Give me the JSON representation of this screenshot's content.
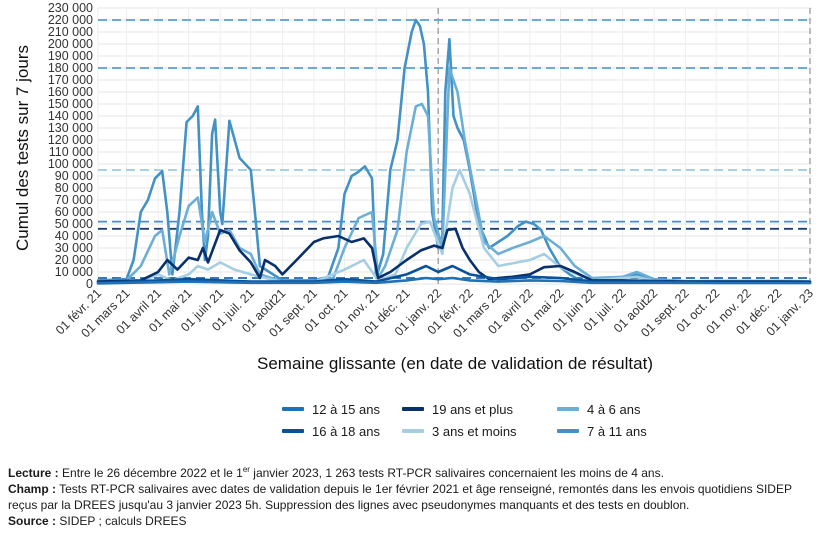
{
  "chart_data": {
    "type": "line",
    "xlabel": "Semaine glissante (en date de validation de résultat)",
    "ylabel": "Cumul des tests sur 7 jours",
    "ylim": [
      0,
      230000
    ],
    "yticks": [
      0,
      10000,
      20000,
      30000,
      40000,
      50000,
      60000,
      70000,
      80000,
      90000,
      100000,
      110000,
      120000,
      130000,
      140000,
      150000,
      160000,
      170000,
      180000,
      190000,
      200000,
      210000,
      220000,
      230000
    ],
    "ytick_labels": [
      "0",
      "10 000",
      "20 000",
      "30 000",
      "40 000",
      "50 000",
      "60 000",
      "70 000",
      "80 000",
      "90 000",
      "100 000",
      "110 000",
      "120 000",
      "130 000",
      "140 000",
      "150 000",
      "160 000",
      "170 000",
      "180 000",
      "190 000",
      "200 000",
      "210 000",
      "220 000",
      "230 000"
    ],
    "x_range": [
      "2021-02-01",
      "2023-01-03"
    ],
    "xticks": [
      "2021-02-01",
      "2021-03-01",
      "2021-04-01",
      "2021-05-01",
      "2021-06-01",
      "2021-07-01",
      "2021-08-01",
      "2021-09-01",
      "2021-10-01",
      "2021-11-01",
      "2021-12-01",
      "2022-01-01",
      "2022-02-01",
      "2022-03-01",
      "2022-04-01",
      "2022-05-01",
      "2022-06-01",
      "2022-07-01",
      "2022-08-01",
      "2022-09-01",
      "2022-10-01",
      "2022-11-01",
      "2022-12-01",
      "2023-01-01"
    ],
    "xtick_labels": [
      "01 févr. 21",
      "01 mars 21",
      "01 avril 21",
      "01 mai 21",
      "01 juin 21",
      "01 juil. 21",
      "01 août21",
      "01 sept. 21",
      "01 oct. 21",
      "01 nov. 21",
      "01 déc. 21",
      "01 janv. 22",
      "01 févr. 22",
      "01 mars 22",
      "01 avril 22",
      "01 mai 22",
      "01 juin 22",
      "01 juil. 22",
      "01 août22",
      "01 sept. 22",
      "01 oct. 22",
      "01 nov. 22",
      "01 déc. 22",
      "01 janv. 23"
    ],
    "vlines": [
      "2022-01-01",
      "2023-01-01"
    ],
    "hlines": [
      {
        "y": 220000,
        "color": "#5a9fd0"
      },
      {
        "y": 180000,
        "color": "#5a9fd0"
      },
      {
        "y": 95000,
        "color": "#9ecae1"
      },
      {
        "y": 52000,
        "color": "#4a8cc7"
      },
      {
        "y": 46000,
        "color": "#1f3f73"
      },
      {
        "y": 5000,
        "color": "#2166ac"
      }
    ],
    "grid": true,
    "legend_position": "bottom",
    "series": [
      {
        "name": "7 à 11 ans",
        "color": "#4292c6",
        "x": [
          "2021-02-01",
          "2021-03-01",
          "2021-03-08",
          "2021-03-15",
          "2021-03-22",
          "2021-03-29",
          "2021-04-05",
          "2021-04-10",
          "2021-04-15",
          "2021-04-22",
          "2021-04-29",
          "2021-05-05",
          "2021-05-10",
          "2021-05-14",
          "2021-05-17",
          "2021-05-20",
          "2021-05-24",
          "2021-05-27",
          "2021-06-01",
          "2021-06-03",
          "2021-06-10",
          "2021-06-20",
          "2021-07-01",
          "2021-07-05",
          "2021-07-10",
          "2021-08-01",
          "2021-09-01",
          "2021-09-15",
          "2021-09-25",
          "2021-10-01",
          "2021-10-08",
          "2021-10-14",
          "2021-10-21",
          "2021-10-28",
          "2021-11-01",
          "2021-11-08",
          "2021-11-15",
          "2021-11-22",
          "2021-11-29",
          "2021-12-06",
          "2021-12-10",
          "2021-12-14",
          "2021-12-18",
          "2021-12-22",
          "2021-12-26",
          "2022-01-01",
          "2022-01-05",
          "2022-01-08",
          "2022-01-12",
          "2022-01-16",
          "2022-01-20",
          "2022-01-26",
          "2022-02-01",
          "2022-02-10",
          "2022-02-20",
          "2022-03-01",
          "2022-03-10",
          "2022-03-20",
          "2022-03-28",
          "2022-04-05",
          "2022-04-12",
          "2022-04-20",
          "2022-05-01",
          "2022-05-10",
          "2022-05-20",
          "2022-06-01",
          "2022-06-15",
          "2022-07-01",
          "2022-07-15",
          "2022-08-01",
          "2022-09-01",
          "2022-10-01",
          "2022-11-01",
          "2022-12-01",
          "2022-12-20",
          "2023-01-01"
        ],
        "y": [
          3000,
          4000,
          20000,
          60000,
          70000,
          88000,
          94000,
          60000,
          8000,
          60000,
          135000,
          140000,
          148000,
          60000,
          20000,
          40000,
          125000,
          137000,
          60000,
          50000,
          136000,
          105000,
          95000,
          60000,
          15000,
          3000,
          3000,
          6000,
          30000,
          75000,
          90000,
          93000,
          98000,
          88000,
          5000,
          25000,
          95000,
          120000,
          180000,
          210000,
          220000,
          215000,
          200000,
          160000,
          60000,
          30000,
          40000,
          160000,
          204000,
          140000,
          130000,
          120000,
          95000,
          50000,
          30000,
          35000,
          40000,
          48000,
          52000,
          50000,
          45000,
          30000,
          14000,
          8000,
          3000,
          3000,
          3000,
          5000,
          8000,
          3000,
          2000,
          2500,
          2500,
          2500,
          2500,
          2000
        ]
      },
      {
        "name": "4 à 6 ans",
        "color": "#6baed6",
        "x": [
          "2021-02-01",
          "2021-03-01",
          "2021-03-15",
          "2021-03-29",
          "2021-04-05",
          "2021-04-12",
          "2021-04-22",
          "2021-05-01",
          "2021-05-10",
          "2021-05-17",
          "2021-05-24",
          "2021-06-01",
          "2021-06-10",
          "2021-06-20",
          "2021-07-01",
          "2021-07-10",
          "2021-08-01",
          "2021-09-01",
          "2021-09-20",
          "2021-10-01",
          "2021-10-15",
          "2021-10-28",
          "2021-11-03",
          "2021-11-10",
          "2021-11-22",
          "2021-12-01",
          "2021-12-10",
          "2021-12-16",
          "2021-12-22",
          "2021-12-28",
          "2022-01-05",
          "2022-01-12",
          "2022-01-20",
          "2022-01-27",
          "2022-02-05",
          "2022-02-15",
          "2022-03-01",
          "2022-03-15",
          "2022-04-01",
          "2022-04-15",
          "2022-05-01",
          "2022-05-15",
          "2022-06-01",
          "2022-07-01",
          "2022-07-15",
          "2022-08-01",
          "2022-09-01",
          "2022-10-01",
          "2022-11-01",
          "2022-12-01",
          "2023-01-01"
        ],
        "y": [
          2000,
          3000,
          15000,
          40000,
          45000,
          8000,
          40000,
          65000,
          72000,
          35000,
          60000,
          42000,
          45000,
          30000,
          25000,
          8000,
          2000,
          2000,
          5000,
          30000,
          55000,
          60000,
          5000,
          15000,
          45000,
          110000,
          148000,
          150000,
          140000,
          55000,
          30000,
          180000,
          160000,
          120000,
          80000,
          35000,
          25000,
          30000,
          35000,
          40000,
          30000,
          15000,
          5000,
          6000,
          10000,
          4000,
          2500,
          2500,
          2500,
          2500,
          2000
        ]
      },
      {
        "name": "3 ans et moins",
        "color": "#a6cee3",
        "x": [
          "2021-02-01",
          "2021-03-15",
          "2021-04-01",
          "2021-04-15",
          "2021-05-01",
          "2021-05-10",
          "2021-05-20",
          "2021-06-01",
          "2021-06-15",
          "2021-07-01",
          "2021-08-01",
          "2021-09-01",
          "2021-10-01",
          "2021-10-20",
          "2021-11-03",
          "2021-11-20",
          "2021-12-01",
          "2021-12-15",
          "2021-12-24",
          "2022-01-05",
          "2022-01-15",
          "2022-01-22",
          "2022-02-01",
          "2022-02-15",
          "2022-03-01",
          "2022-04-01",
          "2022-04-15",
          "2022-05-01",
          "2022-06-01",
          "2022-07-01",
          "2022-07-15",
          "2022-08-01",
          "2022-09-01",
          "2022-10-01",
          "2022-11-01",
          "2022-12-01",
          "2023-01-01"
        ],
        "y": [
          1000,
          2000,
          8000,
          3000,
          8000,
          15000,
          12000,
          18000,
          12000,
          8000,
          1500,
          1500,
          12000,
          20000,
          3000,
          8000,
          30000,
          50000,
          52000,
          25000,
          80000,
          95000,
          75000,
          30000,
          15000,
          20000,
          25000,
          14000,
          3000,
          5000,
          6000,
          2500,
          1500,
          1500,
          1500,
          1500,
          1263
        ]
      },
      {
        "name": "19 ans et plus",
        "color": "#08306b",
        "x": [
          "2021-02-01",
          "2021-03-15",
          "2021-04-01",
          "2021-04-10",
          "2021-04-20",
          "2021-05-01",
          "2021-05-10",
          "2021-05-15",
          "2021-05-20",
          "2021-06-01",
          "2021-06-10",
          "2021-06-20",
          "2021-07-01",
          "2021-07-10",
          "2021-07-15",
          "2021-07-25",
          "2021-08-01",
          "2021-08-15",
          "2021-09-01",
          "2021-09-10",
          "2021-09-25",
          "2021-10-08",
          "2021-10-20",
          "2021-10-28",
          "2021-11-03",
          "2021-11-15",
          "2021-12-01",
          "2021-12-15",
          "2021-12-28",
          "2022-01-05",
          "2022-01-10",
          "2022-01-18",
          "2022-01-25",
          "2022-02-01",
          "2022-02-10",
          "2022-02-20",
          "2022-03-01",
          "2022-03-15",
          "2022-04-01",
          "2022-04-15",
          "2022-05-01",
          "2022-05-15",
          "2022-06-01",
          "2022-07-01",
          "2022-08-01",
          "2022-09-01",
          "2022-10-01",
          "2022-11-01",
          "2022-12-01",
          "2023-01-01"
        ],
        "y": [
          2000,
          3000,
          10000,
          20000,
          12000,
          22000,
          20000,
          30000,
          18000,
          45000,
          42000,
          28000,
          18000,
          5000,
          20000,
          15000,
          8000,
          20000,
          35000,
          38000,
          40000,
          35000,
          38000,
          30000,
          5000,
          10000,
          20000,
          28000,
          32000,
          30000,
          45000,
          46000,
          30000,
          20000,
          10000,
          4000,
          5000,
          6000,
          8000,
          14000,
          15000,
          10000,
          3000,
          3000,
          2500,
          2000,
          2000,
          2000,
          2000,
          1800
        ]
      },
      {
        "name": "16 à 18 ans",
        "color": "#08519c",
        "x": [
          "2021-02-01",
          "2021-04-01",
          "2021-05-01",
          "2021-06-01",
          "2021-07-01",
          "2021-09-01",
          "2021-10-01",
          "2021-11-01",
          "2021-12-01",
          "2021-12-20",
          "2022-01-01",
          "2022-01-15",
          "2022-02-01",
          "2022-03-01",
          "2022-04-01",
          "2022-05-01",
          "2022-06-01",
          "2022-08-01",
          "2022-10-01",
          "2022-12-01",
          "2023-01-01"
        ],
        "y": [
          1000,
          3000,
          4000,
          3000,
          2000,
          2000,
          4000,
          2000,
          8000,
          15000,
          10000,
          15000,
          8000,
          4000,
          6000,
          5000,
          2000,
          2000,
          1000,
          1000,
          1000
        ]
      },
      {
        "name": "12 à 15 ans",
        "color": "#2171b5",
        "x": [
          "2021-02-01",
          "2021-04-01",
          "2021-05-01",
          "2021-06-01",
          "2021-07-01",
          "2021-09-01",
          "2021-10-01",
          "2021-11-01",
          "2021-12-01",
          "2021-12-20",
          "2022-01-01",
          "2022-01-15",
          "2022-02-01",
          "2022-03-01",
          "2022-04-01",
          "2022-05-01",
          "2022-06-01",
          "2022-08-01",
          "2022-10-01",
          "2022-12-01",
          "2023-01-01"
        ],
        "y": [
          500,
          1500,
          2000,
          1500,
          1000,
          1000,
          2000,
          1000,
          3000,
          5000,
          4000,
          5000,
          3000,
          2000,
          3000,
          2500,
          1000,
          1000,
          800,
          800,
          800
        ]
      }
    ]
  },
  "legend": {
    "items": [
      {
        "label": "12 à 15 ans",
        "color": "#2171b5"
      },
      {
        "label": "19 ans et plus",
        "color": "#08306b"
      },
      {
        "label": "4 à 6 ans",
        "color": "#6baed6"
      },
      {
        "label": "16 à 18 ans",
        "color": "#08519c"
      },
      {
        "label": "3 ans et moins",
        "color": "#a6cee3"
      },
      {
        "label": "7 à 11 ans",
        "color": "#4292c6"
      }
    ]
  },
  "notes": {
    "lecture_label": "Lecture :",
    "lecture_text_1": " Entre le 26 décembre 2022 et le 1",
    "lecture_sup": "er",
    "lecture_text_2": " janvier 2023, 1 263 tests RT-PCR salivaires concernaient les moins de 4 ans.",
    "champ_label": "Champ :",
    "champ_text": " Tests RT-PCR salivaires avec dates de validation depuis le 1er février 2021 et âge renseigné, remontés dans les envois quotidiens SIDEP reçus par la DREES jusqu'au 3 janvier 2023 5h. Suppression des lignes avec pseudonymes manquants et des tests en doublon.",
    "source_label": "Source :",
    "source_text": " SIDEP ; calculs DREES"
  }
}
